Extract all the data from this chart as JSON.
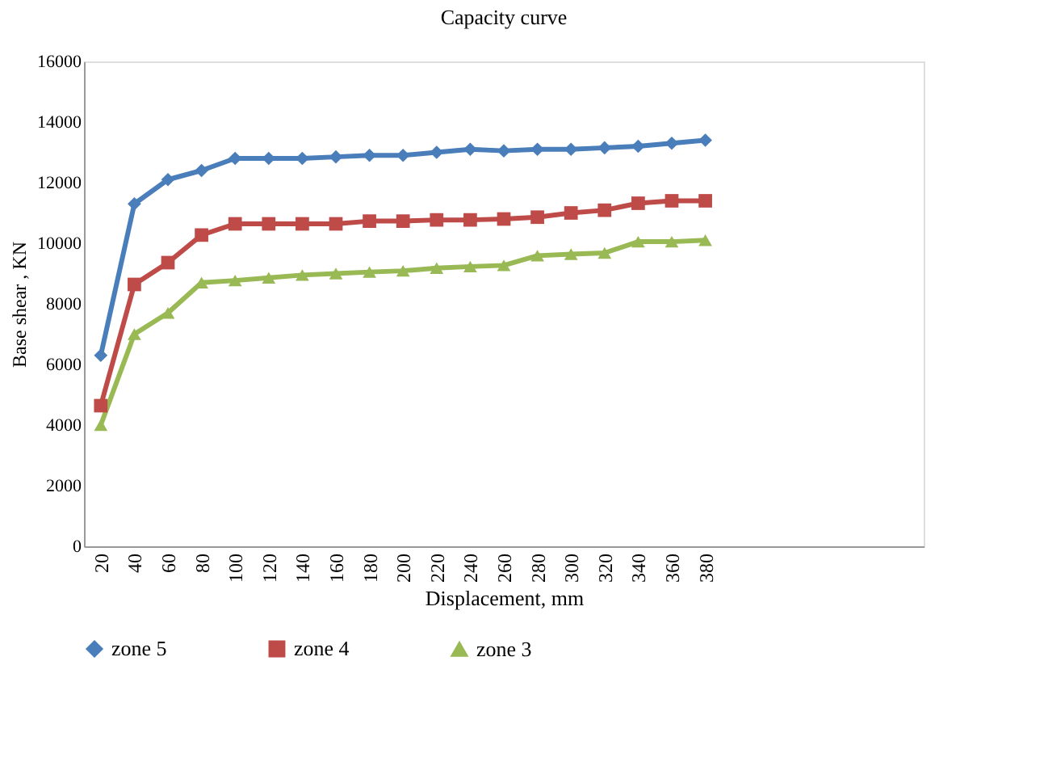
{
  "chart_data": {
    "type": "line",
    "title": "Capacity curve",
    "xlabel": "Displacement, mm",
    "ylabel": "Base shear , KN",
    "categories": [
      "20",
      "40",
      "60",
      "80",
      "100",
      "120",
      "140",
      "160",
      "180",
      "200",
      "220",
      "240",
      "260",
      "280",
      "300",
      "320",
      "340",
      "360",
      "380",
      null,
      null,
      null,
      null,
      null,
      null
    ],
    "series": [
      {
        "name": "zone 5",
        "color": "#4a7ebb",
        "marker": "diamond",
        "values": [
          6300,
          11300,
          12100,
          12400,
          12800,
          12800,
          12800,
          12850,
          12900,
          12900,
          13000,
          13100,
          13050,
          13100,
          13100,
          13150,
          13200,
          13300,
          13400,
          null,
          null,
          null,
          null,
          null,
          null
        ]
      },
      {
        "name": "zone 4",
        "color": "#be4b48",
        "marker": "square",
        "values": [
          4640,
          8640,
          9360,
          10270,
          10640,
          10640,
          10640,
          10640,
          10730,
          10730,
          10770,
          10770,
          10800,
          10860,
          11000,
          11090,
          11320,
          11400,
          11400,
          null,
          null,
          null,
          null,
          null,
          null
        ]
      },
      {
        "name": "zone 3",
        "color": "#98b954",
        "marker": "triangle",
        "values": [
          4000,
          7000,
          7700,
          8700,
          8770,
          8860,
          8950,
          9000,
          9050,
          9090,
          9180,
          9230,
          9270,
          9590,
          9640,
          9680,
          10050,
          10050,
          10100,
          null,
          null,
          null,
          null,
          null,
          null
        ]
      }
    ],
    "ylim": [
      0,
      16000
    ],
    "yticks": [
      0,
      2000,
      4000,
      6000,
      8000,
      10000,
      12000,
      14000,
      16000
    ],
    "grid": false,
    "legend": "bottom",
    "line_style": "solid"
  }
}
